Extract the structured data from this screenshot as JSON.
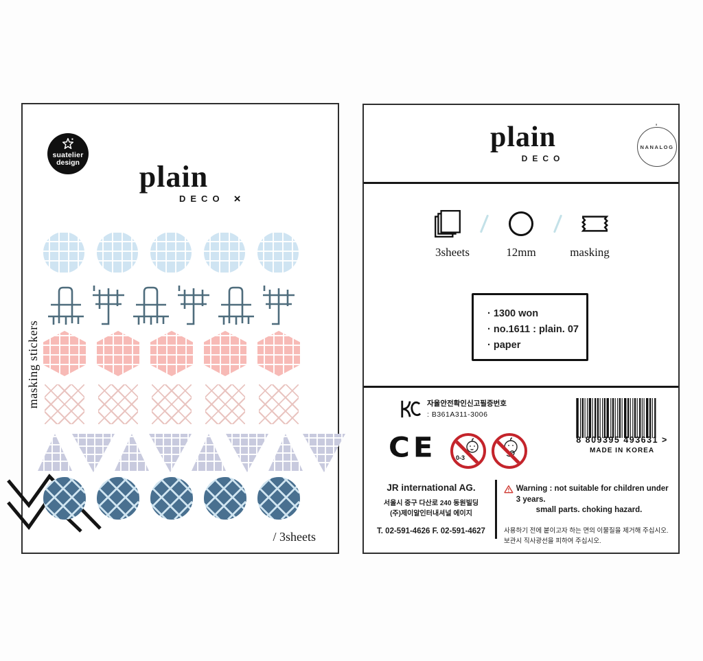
{
  "left_card": {
    "brand_logo": {
      "line1": "suatelier",
      "line2": "design"
    },
    "title": "plain",
    "subtitle": "DECO",
    "subtitle_mark": "×",
    "side_label": "masking stickers",
    "sheets_note": "/ 3sheets",
    "rows": [
      {
        "type": "grid-circle",
        "count": 5,
        "fill": "#cfe4f2"
      },
      {
        "type": "line-doodle",
        "count": 6,
        "stroke": "#4e6c7c"
      },
      {
        "type": "grid-hexagon",
        "count": 5,
        "fill": "#f7bab6"
      },
      {
        "type": "lattice-square",
        "count": 5,
        "line": "#e9c4c0"
      },
      {
        "type": "grid-triangle",
        "count": 8,
        "fill": "#c8cade"
      },
      {
        "type": "lattice-circle",
        "count": 5,
        "fill": "#497090"
      }
    ]
  },
  "right_card": {
    "title": "plain",
    "subtitle": "DECO",
    "maker_badge": "NANALOG",
    "maker_badge_mark": "'",
    "specs": [
      {
        "icon": "sheets-icon",
        "label": "3sheets"
      },
      {
        "icon": "circle-icon",
        "label": "12mm"
      },
      {
        "icon": "masking-tape-icon",
        "label": "masking"
      }
    ],
    "info_box": {
      "items": [
        "1300 won",
        "no.1611 : plain. 07",
        "paper"
      ]
    },
    "certification": {
      "kc_label_line1": "자율안전확인신고필증번호",
      "kc_label_line2": ": B361A311-3006",
      "ce": "CE",
      "age_restriction": "0-3",
      "barcode_number": "8 809395 493631 >",
      "made_in": "MADE IN KOREA"
    },
    "distributor": {
      "name": "JR international AG.",
      "address_line1": "서울시 중구 다산로 240 동원빌딩",
      "address_line2": "(주)제이알인터내셔널 에이지",
      "phone": "T. 02-591-4626   F. 02-591-4627"
    },
    "warning": {
      "en_line1": "Warning : not suitable for children under 3 years.",
      "en_line2": "small parts. choking hazard.",
      "ko_line1": "사용하기 전에 붙이고자 하는 면의 이물질을 제거해 주십시오.",
      "ko_line2": "보관시 직사광선을 피하여 주십시오."
    }
  }
}
